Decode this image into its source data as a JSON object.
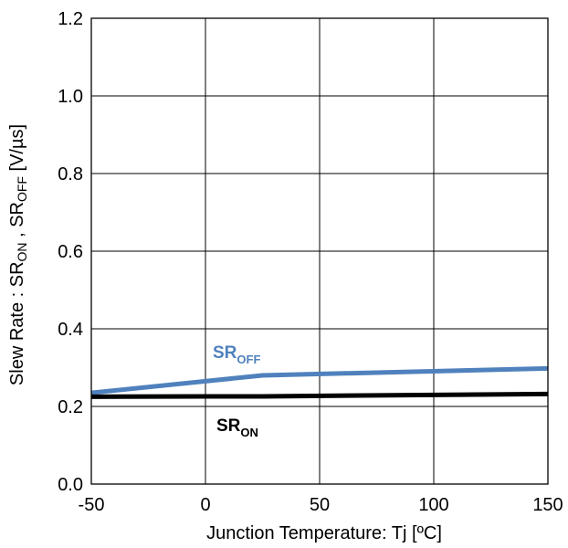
{
  "chart_data": {
    "type": "line",
    "xlabel": "Junction Temperature: Tj [ºC]",
    "ylabel": {
      "prefix": "Slew Rate : SR",
      "on_sub": "ON",
      "separator": " , SR",
      "off_sub": "OFF",
      "suffix": " [V/µs]"
    },
    "xlim": [
      -50,
      150
    ],
    "ylim": [
      0.0,
      1.2
    ],
    "xticks": [
      -50,
      0,
      50,
      100,
      150
    ],
    "xtick_labels": [
      "-50",
      "0",
      "50",
      "100",
      "150"
    ],
    "yticks": [
      0.0,
      0.2,
      0.4,
      0.6,
      0.8,
      1.0,
      1.2
    ],
    "ytick_labels": [
      "0.0",
      "0.2",
      "0.4",
      "0.6",
      "0.8",
      "1.0",
      "1.2"
    ],
    "grid": true,
    "legend": "none",
    "series": [
      {
        "name": "SR_OFF",
        "label_main": "SR",
        "label_sub": "OFF",
        "color": "#4F81BD",
        "x": [
          -50,
          0,
          25,
          150
        ],
        "y": [
          0.235,
          0.265,
          0.28,
          0.298
        ]
      },
      {
        "name": "SR_ON",
        "label_main": "SR",
        "label_sub": "ON",
        "color": "#000000",
        "x": [
          -50,
          0,
          25,
          150
        ],
        "y": [
          0.225,
          0.226,
          0.226,
          0.232
        ]
      }
    ],
    "reference_lines": [
      {
        "y": 0.2,
        "color": "#000000"
      }
    ]
  }
}
